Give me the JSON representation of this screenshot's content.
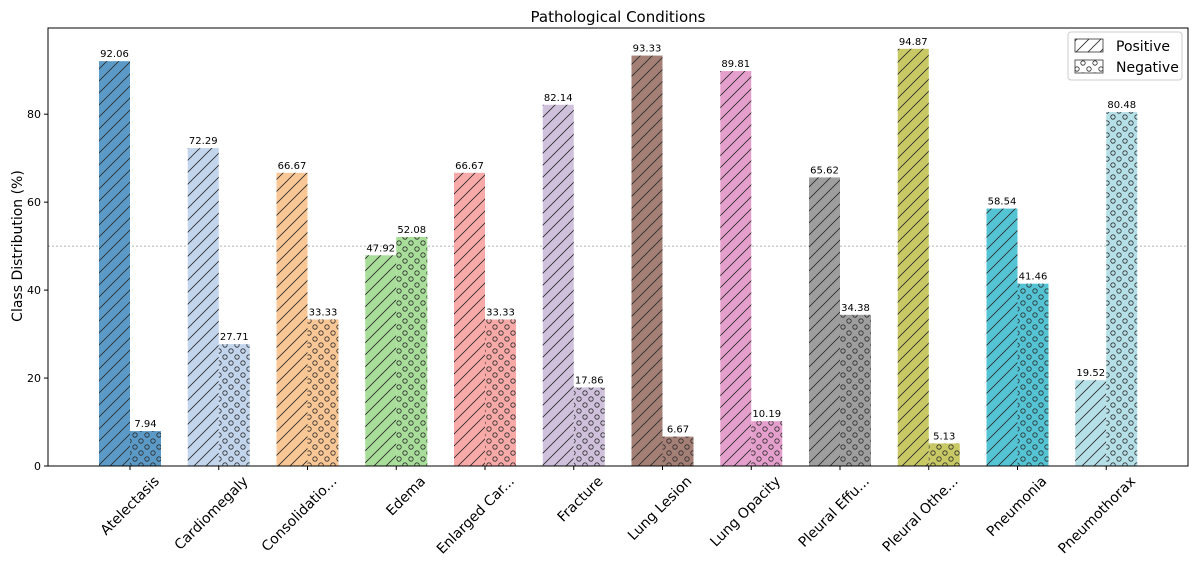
{
  "chart_data": {
    "type": "bar",
    "title": "Pathological Conditions",
    "ylabel": "Class Distribution (%)",
    "xlabel": "",
    "ylim": [
      0,
      99.6
    ],
    "yticks": [
      0,
      20,
      40,
      60,
      80
    ],
    "reference_line": 50,
    "grid": false,
    "legend_position": "top-right",
    "categories": [
      "Atelectasis",
      "Cardiomegaly",
      "Consolidatio...",
      "Edema",
      "Enlarged Car...",
      "Fracture",
      "Lung Lesion",
      "Lung Opacity",
      "Pleural Effu...",
      "Pleural Othe...",
      "Pneumonia",
      "Pneumothorax"
    ],
    "category_colors": [
      "#5b9ac6",
      "#c2d5ec",
      "#f9c795",
      "#a8dd9a",
      "#f7aaa8",
      "#cfc1dc",
      "#a47f76",
      "#e59fcc",
      "#9e9e9e",
      "#c8c865",
      "#54c4d4",
      "#b6e0e8"
    ],
    "series": [
      {
        "name": "Positive",
        "pattern": "diagonal-hatch",
        "values": [
          92.06,
          72.29,
          66.67,
          47.92,
          66.67,
          82.14,
          93.33,
          89.81,
          65.62,
          94.87,
          58.54,
          19.52
        ]
      },
      {
        "name": "Negative",
        "pattern": "circle-dots",
        "values": [
          7.94,
          27.71,
          33.33,
          52.08,
          33.33,
          17.86,
          6.67,
          10.19,
          34.38,
          5.13,
          41.46,
          80.48
        ]
      }
    ]
  }
}
